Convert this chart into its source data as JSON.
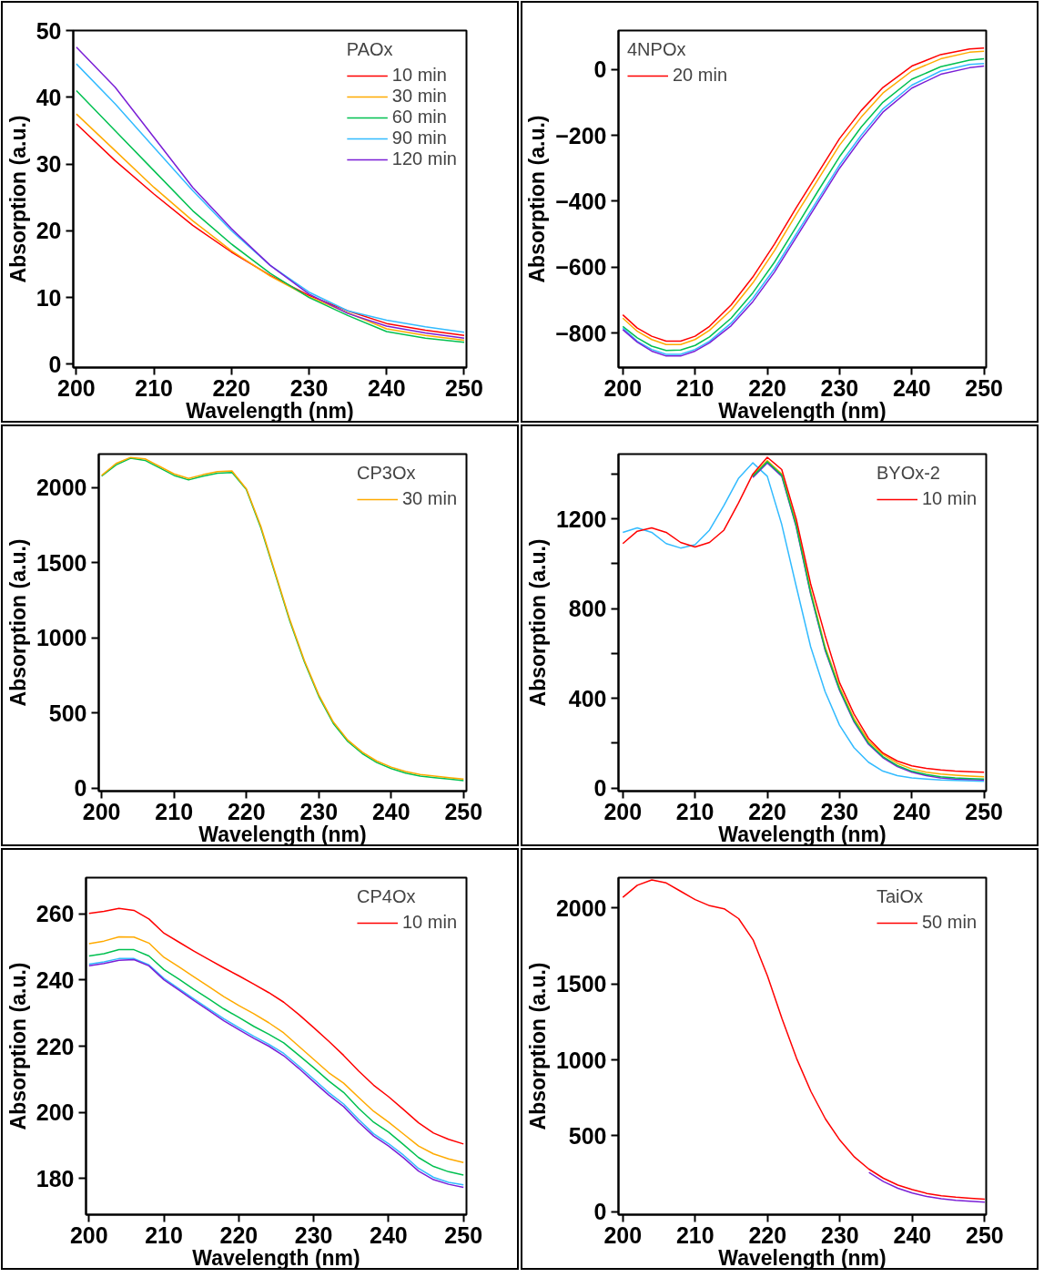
{
  "chart_data": [
    {
      "type": "line",
      "legend_title": "PAOx",
      "xlabel": "Wavelength (nm)",
      "ylabel": "Absorption (a.u.)",
      "grid": false,
      "legend": "top right",
      "xlim": [
        199.6,
        250.3
      ],
      "xticks": [
        200,
        210,
        220,
        230,
        240,
        250
      ],
      "ylim": [
        -0.5,
        50
      ],
      "yticks": [
        0,
        10,
        20,
        30,
        40,
        50
      ],
      "x": [
        200,
        205,
        210,
        215,
        220,
        225,
        230,
        235,
        240,
        245,
        250
      ],
      "series": [
        {
          "name": "10 min",
          "color": "#ff0000",
          "values": [
            36,
            30.5,
            25.5,
            20.8,
            16.8,
            13.3,
            10.3,
            8,
            6.1,
            5.1,
            4.3
          ]
        },
        {
          "name": "30 min",
          "color": "#ffaa00",
          "values": [
            37.5,
            32,
            26.5,
            21.5,
            17,
            13.2,
            10.1,
            7.7,
            5.3,
            4.3,
            3.6
          ]
        },
        {
          "name": "60 min",
          "color": "#00c050",
          "values": [
            41,
            35,
            29,
            23,
            18,
            13.6,
            10,
            7.3,
            4.9,
            3.9,
            3.3
          ]
        },
        {
          "name": "90 min",
          "color": "#33bbff",
          "values": [
            45,
            39,
            32.5,
            26,
            20,
            14.8,
            10.8,
            8,
            6.6,
            5.6,
            4.8
          ]
        },
        {
          "name": "120 min",
          "color": "#7a1fd6",
          "values": [
            47.5,
            41.5,
            34,
            26.5,
            20.3,
            14.8,
            10.5,
            7.6,
            5.7,
            4.7,
            3.9
          ]
        }
      ]
    },
    {
      "type": "line",
      "legend_title": "4NPOx",
      "xlabel": "Wavelength (nm)",
      "ylabel": "Absorption (a.u.)",
      "grid": false,
      "legend": "top left",
      "xlim": [
        199.4,
        250.3
      ],
      "xticks": [
        200,
        210,
        220,
        230,
        240,
        250
      ],
      "ylim": [
        -905,
        118
      ],
      "yticks": [
        0,
        -200,
        -400,
        -600,
        -800
      ],
      "x": [
        200,
        202,
        204,
        206,
        208,
        210,
        212,
        215,
        218,
        221,
        224,
        227,
        230,
        233,
        236,
        240,
        244,
        248,
        250
      ],
      "series": [
        {
          "name": "20 min",
          "color": "#ff0000",
          "values": [
            -745,
            -785,
            -810,
            -825,
            -825,
            -810,
            -780,
            -715,
            -630,
            -530,
            -420,
            -315,
            -210,
            -125,
            -55,
            10,
            45,
            62,
            65
          ]
        },
        {
          "color": "#ffaa00",
          "values": [
            -755,
            -795,
            -820,
            -835,
            -835,
            -820,
            -792,
            -730,
            -648,
            -550,
            -440,
            -335,
            -230,
            -145,
            -72,
            -5,
            32,
            52,
            55
          ]
        },
        {
          "color": "#00c050",
          "values": [
            -780,
            -815,
            -840,
            -853,
            -852,
            -838,
            -812,
            -755,
            -678,
            -585,
            -478,
            -370,
            -265,
            -175,
            -100,
            -30,
            8,
            28,
            32
          ]
        },
        {
          "color": "#33bbff",
          "values": [
            -785,
            -825,
            -850,
            -865,
            -865,
            -850,
            -825,
            -770,
            -695,
            -605,
            -500,
            -395,
            -290,
            -200,
            -120,
            -48,
            -5,
            15,
            18
          ]
        },
        {
          "color": "#7a1fd6",
          "values": [
            -790,
            -828,
            -855,
            -870,
            -870,
            -855,
            -830,
            -778,
            -705,
            -615,
            -510,
            -405,
            -300,
            -210,
            -130,
            -57,
            -15,
            5,
            10
          ]
        }
      ]
    },
    {
      "type": "line",
      "legend_title": "CP3Ox",
      "xlabel": "Wavelength (nm)",
      "ylabel": "Absorption (a.u.)",
      "grid": false,
      "legend": "top right",
      "xlim": [
        199.6,
        250.4
      ],
      "xticks": [
        200,
        210,
        220,
        230,
        240,
        250
      ],
      "ylim": [
        -20,
        2222
      ],
      "yticks": [
        0,
        500,
        1000,
        1500,
        2000
      ],
      "x": [
        200,
        202,
        204,
        206,
        208,
        210,
        212,
        214,
        216,
        218,
        220,
        222,
        224,
        226,
        228,
        230,
        232,
        234,
        236,
        238,
        240,
        242,
        244,
        246,
        248,
        250
      ],
      "series": [
        {
          "color": "#00c050",
          "values": [
            2075,
            2150,
            2195,
            2180,
            2130,
            2080,
            2050,
            2075,
            2095,
            2100,
            1985,
            1730,
            1420,
            1110,
            840,
            610,
            430,
            310,
            230,
            170,
            130,
            100,
            80,
            70,
            60,
            50
          ]
        },
        {
          "name": "30 min",
          "color": "#ffaa00",
          "values": [
            2080,
            2160,
            2200,
            2190,
            2140,
            2090,
            2060,
            2085,
            2105,
            2110,
            1990,
            1740,
            1430,
            1120,
            850,
            620,
            440,
            320,
            240,
            180,
            140,
            110,
            90,
            80,
            70,
            60
          ]
        }
      ]
    },
    {
      "type": "line",
      "legend_title": "BYOx-2",
      "xlabel": "Wavelength (nm)",
      "ylabel": "Absorption (a.u.)",
      "grid": false,
      "legend": "top right",
      "xlim": [
        199.4,
        250.3
      ],
      "xticks": [
        200,
        210,
        220,
        230,
        240,
        250
      ],
      "ylim": [
        -14,
        1489
      ],
      "yticks": [
        0,
        {
          "value": 200,
          "label": null
        },
        400,
        {
          "value": 600,
          "label": null
        },
        800,
        {
          "value": 1000,
          "label": null
        },
        1200,
        {
          "value": 1400,
          "label": null
        }
      ],
      "x": [
        200,
        202,
        204,
        206,
        208,
        210,
        212,
        214,
        216,
        218,
        220,
        222,
        224,
        226,
        228,
        230,
        232,
        234,
        236,
        238,
        240,
        242,
        244,
        246,
        248,
        250
      ],
      "series": [
        {
          "color": "#33bbff",
          "values": [
            1140,
            1160,
            1140,
            1090,
            1070,
            1085,
            1150,
            1260,
            1380,
            1450,
            1390,
            1175,
            900,
            630,
            430,
            280,
            180,
            115,
            75,
            55,
            45,
            40,
            36,
            34,
            32,
            30
          ]
        },
        {
          "color": "#7a1fd6",
          "values": [
            null,
            null,
            null,
            null,
            null,
            null,
            null,
            null,
            null,
            1385,
            1450,
            1390,
            1165,
            865,
            615,
            435,
            295,
            195,
            135,
            95,
            70,
            55,
            45,
            40,
            38,
            36
          ]
        },
        {
          "color": "#ffaa00",
          "values": [
            null,
            null,
            null,
            null,
            null,
            null,
            null,
            null,
            null,
            1395,
            1460,
            1400,
            1180,
            880,
            630,
            450,
            310,
            210,
            150,
            110,
            85,
            70,
            62,
            57,
            53,
            50
          ]
        },
        {
          "color": "#00c050",
          "values": [
            null,
            null,
            null,
            null,
            null,
            null,
            null,
            null,
            null,
            1390,
            1455,
            1395,
            1170,
            870,
            620,
            440,
            300,
            200,
            140,
            100,
            75,
            60,
            50,
            45,
            42,
            40
          ]
        },
        {
          "name": "10 min",
          "color": "#ff0000",
          "values": [
            1090,
            1145,
            1160,
            1140,
            1095,
            1075,
            1095,
            1150,
            1270,
            1400,
            1475,
            1420,
            1200,
            910,
            680,
            470,
            330,
            222,
            156,
            120,
            99,
            88,
            80,
            75,
            72,
            70
          ]
        }
      ]
    },
    {
      "type": "line",
      "legend_title": "CP4Ox",
      "xlabel": "Wavelength (nm)",
      "ylabel": "Absorption (a.u.)",
      "grid": false,
      "legend": "top right",
      "xlim": [
        199.6,
        250.4
      ],
      "xticks": [
        200,
        210,
        220,
        230,
        240,
        250
      ],
      "ylim": [
        169,
        271
      ],
      "yticks": [
        180,
        200,
        220,
        240,
        260
      ],
      "x": [
        200,
        202,
        204,
        206,
        208,
        210,
        212,
        214,
        216,
        218,
        220,
        222,
        224,
        226,
        228,
        230,
        232,
        234,
        236,
        238,
        240,
        242,
        244,
        246,
        248,
        250
      ],
      "series": [
        {
          "name": "10 min",
          "color": "#ff0000",
          "values": [
            260.2,
            260.8,
            261.7,
            261.1,
            258.5,
            254.2,
            251.5,
            248.8,
            246.2,
            243.7,
            241.3,
            238.8,
            236.2,
            233.3,
            229.6,
            225.6,
            221.5,
            217.2,
            212.5,
            208.2,
            204.7,
            200.8,
            196.8,
            193.7,
            191.8,
            190.4
          ]
        },
        {
          "color": "#ffaa00",
          "values": [
            251.0,
            251.8,
            253.1,
            253.0,
            251.2,
            246.9,
            244.0,
            241.0,
            238.0,
            235.0,
            232.3,
            229.8,
            227.1,
            224.0,
            220.0,
            216.0,
            212.0,
            208.8,
            204.5,
            200.3,
            197.0,
            193.4,
            189.8,
            187.4,
            185.9,
            184.8
          ]
        },
        {
          "color": "#00c050",
          "values": [
            247.3,
            248.0,
            249.2,
            249.2,
            247.3,
            243.2,
            240.3,
            237.2,
            234.3,
            231.3,
            228.7,
            226.0,
            223.6,
            221.0,
            217.3,
            213.5,
            209.5,
            206.0,
            201.2,
            197.0,
            194.0,
            190.2,
            186.3,
            183.6,
            182.0,
            181.0
          ]
        },
        {
          "color": "#33bbff",
          "values": [
            244.8,
            245.5,
            246.5,
            246.5,
            244.6,
            240.5,
            237.4,
            234.3,
            231.3,
            228.3,
            225.6,
            223.0,
            220.6,
            217.8,
            214.0,
            210.0,
            206.0,
            202.5,
            197.8,
            193.5,
            190.5,
            187.0,
            183.0,
            180.3,
            178.8,
            178.0
          ]
        },
        {
          "color": "#7a1fd6",
          "values": [
            244.3,
            245.0,
            246.0,
            246.2,
            244.3,
            240.1,
            237.0,
            233.8,
            230.8,
            227.7,
            225.0,
            222.4,
            220.0,
            217.1,
            213.3,
            209.2,
            205.2,
            201.7,
            197.0,
            192.8,
            189.8,
            186.2,
            182.2,
            179.6,
            178.2,
            177.3
          ]
        }
      ]
    },
    {
      "type": "line",
      "legend_title": "TaiOx",
      "xlabel": "Wavelength (nm)",
      "ylabel": "Absorption (a.u.)",
      "grid": false,
      "legend": "top right",
      "xlim": [
        199.4,
        250.2
      ],
      "xticks": [
        200,
        210,
        220,
        230,
        240,
        250
      ],
      "ylim": [
        -20,
        2200
      ],
      "yticks": [
        0,
        500,
        1000,
        1500,
        2000
      ],
      "x": [
        200,
        202,
        204,
        206,
        208,
        210,
        212,
        214,
        216,
        218,
        220,
        222,
        224,
        226,
        228,
        230,
        232,
        234,
        236,
        238,
        240,
        242,
        244,
        246,
        248,
        250
      ],
      "series": [
        {
          "color": "#7a1fd6",
          "values": [
            null,
            null,
            null,
            null,
            null,
            null,
            null,
            null,
            null,
            null,
            null,
            null,
            null,
            null,
            null,
            null,
            null,
            258,
            198,
            154,
            123,
            100,
            85,
            75,
            68,
            62
          ]
        },
        {
          "name": "50 min",
          "color": "#ff0000",
          "values": [
            2070,
            2150,
            2185,
            2165,
            2110,
            2055,
            2015,
            1995,
            1930,
            1790,
            1550,
            1270,
            1010,
            790,
            610,
            470,
            360,
            280,
            220,
            175,
            145,
            120,
            105,
            95,
            88,
            82
          ]
        }
      ]
    }
  ]
}
